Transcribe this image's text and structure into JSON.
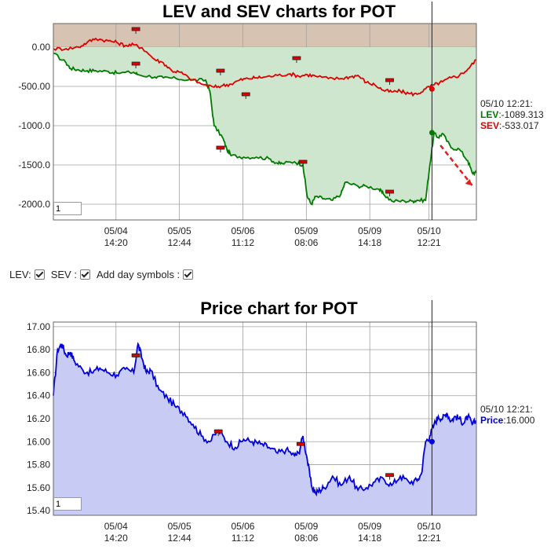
{
  "chart_data": [
    {
      "type": "area",
      "title": "LEV and SEV charts for POT",
      "y_tick_labels": [
        "0.00",
        "-500.00",
        "-1000.0",
        "-1500.0",
        "-2000.0"
      ],
      "ylim": [
        -2200,
        300
      ],
      "x_tick_labels": [
        {
          "date": "05/04",
          "time": "14:20"
        },
        {
          "date": "05/05",
          "time": "12:44"
        },
        {
          "date": "05/06",
          "time": "11:12"
        },
        {
          "date": "05/09",
          "time": "08:06"
        },
        {
          "date": "05/09",
          "time": "14:18"
        },
        {
          "date": "05/10",
          "time": "12:21"
        }
      ],
      "x_range": [
        0,
        100
      ],
      "x_tick_positions": [
        14.8,
        29.8,
        44.8,
        59.8,
        74.8,
        88.8
      ],
      "grid": true,
      "series": [
        {
          "name": "LEV",
          "color": "#007a00",
          "x": [
            0,
            3,
            4,
            6,
            8,
            10,
            13,
            15,
            19,
            20,
            24,
            26,
            29,
            33,
            36,
            37,
            38,
            40,
            41,
            42,
            45,
            48,
            51,
            53,
            54,
            57,
            59,
            60,
            61,
            62,
            64,
            66,
            68,
            69,
            72,
            74,
            77,
            78,
            80,
            83,
            85,
            86,
            88,
            89,
            90,
            91,
            92,
            94,
            96,
            98,
            99,
            100
          ],
          "values": [
            -80,
            -200,
            -270,
            -290,
            -300,
            -300,
            -310,
            -330,
            -320,
            -350,
            -380,
            -390,
            -400,
            -420,
            -420,
            -560,
            -1000,
            -1150,
            -1300,
            -1380,
            -1400,
            -1400,
            -1420,
            -1480,
            -1480,
            -1460,
            -1500,
            -1900,
            -2000,
            -1900,
            -1930,
            -1950,
            -1870,
            -1720,
            -1770,
            -1770,
            -1810,
            -1870,
            -1960,
            -1960,
            -1960,
            -1950,
            -1950,
            -1500,
            -1100,
            -1150,
            -1100,
            -1280,
            -1300,
            -1450,
            -1600,
            -1600
          ]
        },
        {
          "name": "SEV",
          "color": "#e00000",
          "x": [
            0,
            3,
            6,
            8,
            10,
            13,
            15,
            17,
            19,
            21,
            24,
            26,
            28,
            30,
            32,
            35,
            38,
            40,
            42,
            44,
            46,
            48,
            50,
            53,
            56,
            58,
            60,
            62,
            65,
            68,
            70,
            72,
            74,
            76,
            78,
            80,
            82,
            84,
            86,
            88,
            90,
            92,
            94,
            96,
            98,
            100
          ],
          "values": [
            -20,
            -20,
            0,
            60,
            110,
            80,
            60,
            20,
            30,
            -10,
            -160,
            -200,
            -300,
            -320,
            -390,
            -470,
            -510,
            -490,
            -470,
            -420,
            -400,
            -390,
            -380,
            -360,
            -340,
            -370,
            -350,
            -370,
            -400,
            -400,
            -380,
            -360,
            -450,
            -480,
            -550,
            -570,
            -560,
            -590,
            -600,
            -530,
            -480,
            -440,
            -390,
            -360,
            -280,
            -160
          ]
        }
      ],
      "markers": [
        {
          "x": 19.5,
          "y": 230
        },
        {
          "x": 19.5,
          "y": -210
        },
        {
          "x": 39.5,
          "y": -300
        },
        {
          "x": 39.5,
          "y": -1280
        },
        {
          "x": 45.5,
          "y": -600
        },
        {
          "x": 57.5,
          "y": -140
        },
        {
          "x": 59,
          "y": -1460
        },
        {
          "x": 79.5,
          "y": -420
        },
        {
          "x": 79.5,
          "y": -1840
        }
      ],
      "cursor": {
        "x": 89.5,
        "lev": -1089.313,
        "sev": -533.017
      },
      "readout": {
        "time": "05/10 12:21:",
        "lev_label": "LEV",
        "lev_value": ":-1089.313",
        "sev_label": "SEV",
        "sev_value": ":-533.017"
      },
      "zoom_value": "1"
    },
    {
      "type": "area",
      "title": "Price chart for POT",
      "y_tick_labels": [
        "17.00",
        "16.80",
        "16.60",
        "16.40",
        "16.20",
        "16.00",
        "15.80",
        "15.60",
        "15.40"
      ],
      "ylim": [
        15.36,
        17.04
      ],
      "x_tick_labels": [
        {
          "date": "05/04",
          "time": "14:20"
        },
        {
          "date": "05/05",
          "time": "12:44"
        },
        {
          "date": "05/06",
          "time": "11:12"
        },
        {
          "date": "05/09",
          "time": "08:06"
        },
        {
          "date": "05/09",
          "time": "14:18"
        },
        {
          "date": "05/10",
          "time": "12:21"
        }
      ],
      "x_range": [
        0,
        100
      ],
      "x_tick_positions": [
        14.8,
        29.8,
        44.8,
        59.8,
        74.8,
        88.8
      ],
      "grid": true,
      "series": [
        {
          "name": "Price",
          "color": "#0000dd",
          "x": [
            0,
            1,
            2,
            3,
            4,
            5,
            7,
            9,
            11,
            13,
            15,
            17,
            19,
            20,
            21,
            22,
            23,
            25,
            27,
            29,
            31,
            33,
            35,
            37,
            39,
            41,
            43,
            45,
            47,
            49,
            51,
            53,
            55,
            57,
            58,
            59,
            60,
            61,
            62,
            63,
            64,
            66,
            68,
            70,
            72,
            74,
            76,
            78,
            80,
            82,
            84,
            86,
            87,
            88,
            89,
            90,
            91,
            92,
            93,
            94,
            95,
            96,
            97,
            98,
            99,
            100
          ],
          "values": [
            16.4,
            16.8,
            16.85,
            16.75,
            16.78,
            16.7,
            16.62,
            16.6,
            16.64,
            16.6,
            16.58,
            16.63,
            16.6,
            16.85,
            16.72,
            16.6,
            16.62,
            16.45,
            16.38,
            16.3,
            16.25,
            16.15,
            16.05,
            16.0,
            16.1,
            16.0,
            15.95,
            16.02,
            16.0,
            15.98,
            15.95,
            15.9,
            15.93,
            15.88,
            15.9,
            16.05,
            15.85,
            15.62,
            15.55,
            15.58,
            15.6,
            15.7,
            15.62,
            15.7,
            15.58,
            15.6,
            15.65,
            15.68,
            15.62,
            15.7,
            15.65,
            15.66,
            15.72,
            16.0,
            16.05,
            16.15,
            16.22,
            16.2,
            16.25,
            16.18,
            16.22,
            16.2,
            16.16,
            16.22,
            16.15,
            16.18
          ]
        }
      ],
      "markers": [
        {
          "x": 19.5,
          "y": 16.75
        },
        {
          "x": 39,
          "y": 16.09
        },
        {
          "x": 58.5,
          "y": 15.98
        },
        {
          "x": 79.5,
          "y": 15.71
        }
      ],
      "cursor": {
        "x": 89.5,
        "price": 16.0
      },
      "readout": {
        "time": "05/10 12:21:",
        "price_label": "Price",
        "price_value": ":16.000"
      },
      "zoom_value": "1"
    }
  ],
  "controls": {
    "lev_label": "LEV:",
    "sev_label": "SEV :",
    "day_symbols_label": "Add day symbols :"
  }
}
